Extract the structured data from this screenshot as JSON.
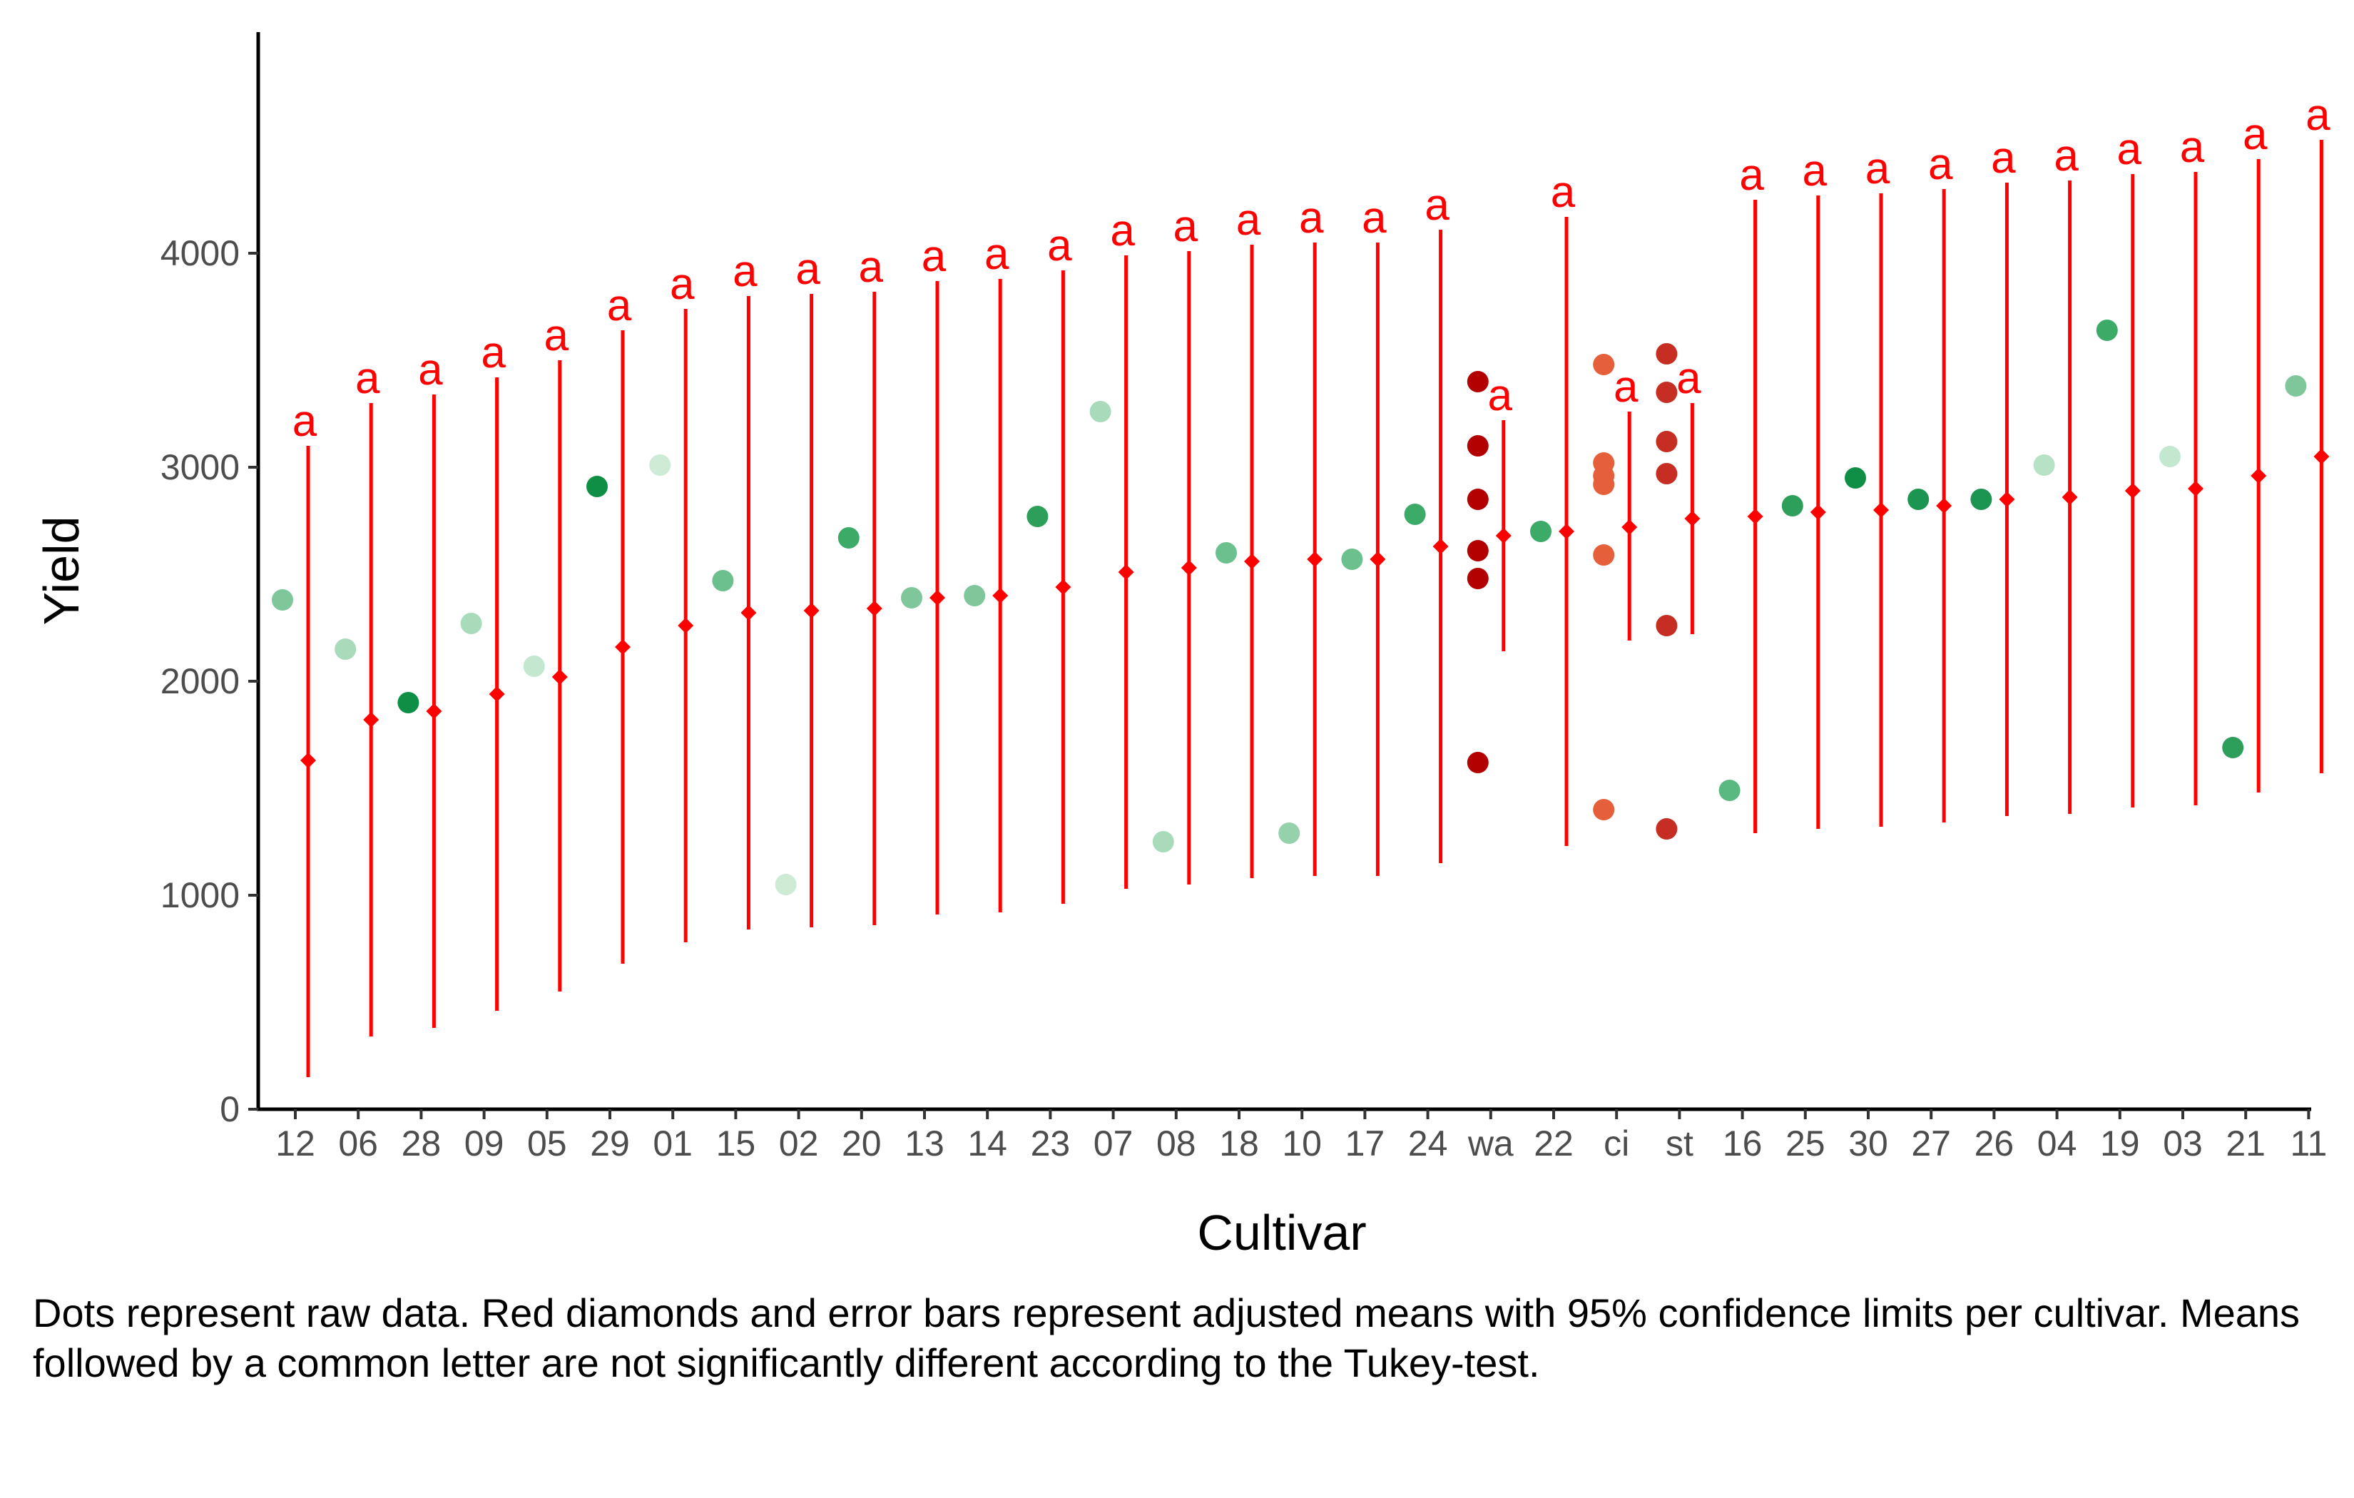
{
  "chart_data": {
    "type": "scatter",
    "xlabel": "Cultivar",
    "ylabel": "Yield",
    "ylim": [
      0,
      4900
    ],
    "yticks": [
      0,
      1000,
      2000,
      3000,
      4000
    ],
    "grid": false,
    "caption": "Dots represent raw data. Red diamonds and error bars represent adjusted means with 95% confidence limits per cultivar. Means followed by a common letter are not significantly different according to the Tukey-test.",
    "categories": [
      "12",
      "06",
      "28",
      "09",
      "05",
      "29",
      "01",
      "15",
      "02",
      "20",
      "13",
      "14",
      "23",
      "07",
      "08",
      "18",
      "10",
      "17",
      "24",
      "wa",
      "22",
      "ci",
      "st",
      "16",
      "25",
      "30",
      "27",
      "26",
      "04",
      "19",
      "03",
      "21",
      "11"
    ],
    "raw_data": [
      {
        "cultivar": "12",
        "values": [
          2380
        ],
        "color": "#7fc79b"
      },
      {
        "cultivar": "06",
        "values": [
          2150
        ],
        "color": "#a9dbbb"
      },
      {
        "cultivar": "28",
        "values": [
          1900
        ],
        "color": "#0f8f45"
      },
      {
        "cultivar": "09",
        "values": [
          2270
        ],
        "color": "#a9dbbb"
      },
      {
        "cultivar": "05",
        "values": [
          2070
        ],
        "color": "#c4e8cf"
      },
      {
        "cultivar": "29",
        "values": [
          2910
        ],
        "color": "#0f8f45"
      },
      {
        "cultivar": "01",
        "values": [
          3010
        ],
        "color": "#cdebd5"
      },
      {
        "cultivar": "15",
        "values": [
          2470
        ],
        "color": "#6cc08d"
      },
      {
        "cultivar": "02",
        "values": [
          1050
        ],
        "color": "#cdebd5"
      },
      {
        "cultivar": "20",
        "values": [
          2670
        ],
        "color": "#3dab68"
      },
      {
        "cultivar": "13",
        "values": [
          2390
        ],
        "color": "#7fc79b"
      },
      {
        "cultivar": "14",
        "values": [
          2400
        ],
        "color": "#7fc79b"
      },
      {
        "cultivar": "23",
        "values": [
          2770
        ],
        "color": "#2e9f5a"
      },
      {
        "cultivar": "07",
        "values": [
          3260
        ],
        "color": "#a9dbbb"
      },
      {
        "cultivar": "08",
        "values": [
          1250
        ],
        "color": "#a9dbbb"
      },
      {
        "cultivar": "18",
        "values": [
          2600
        ],
        "color": "#6cc08d"
      },
      {
        "cultivar": "10",
        "values": [
          1290
        ],
        "color": "#95d1aa"
      },
      {
        "cultivar": "17",
        "values": [
          2570
        ],
        "color": "#6cc08d"
      },
      {
        "cultivar": "24",
        "values": [
          2780
        ],
        "color": "#3dab68"
      },
      {
        "cultivar": "wa",
        "values": [
          3400,
          3100,
          2850,
          2610,
          2480,
          1620
        ],
        "color": "#b30000"
      },
      {
        "cultivar": "22",
        "values": [
          2700
        ],
        "color": "#3dab68"
      },
      {
        "cultivar": "ci",
        "values": [
          3480,
          3020,
          2960,
          2920,
          2590,
          1400
        ],
        "color": "#e5603a"
      },
      {
        "cultivar": "st",
        "values": [
          3530,
          3350,
          3120,
          2970,
          2260,
          1310
        ],
        "color": "#c62e24"
      },
      {
        "cultivar": "16",
        "values": [
          1490
        ],
        "color": "#5ab980"
      },
      {
        "cultivar": "25",
        "values": [
          2820
        ],
        "color": "#2e9f5a"
      },
      {
        "cultivar": "30",
        "values": [
          2950
        ],
        "color": "#0f8f45"
      },
      {
        "cultivar": "27",
        "values": [
          2850
        ],
        "color": "#1b9550"
      },
      {
        "cultivar": "26",
        "values": [
          2850
        ],
        "color": "#1b9550"
      },
      {
        "cultivar": "04",
        "values": [
          3010
        ],
        "color": "#b8e2c6"
      },
      {
        "cultivar": "19",
        "values": [
          3640
        ],
        "color": "#3dab68"
      },
      {
        "cultivar": "03",
        "values": [
          3050
        ],
        "color": "#c4e8cf"
      },
      {
        "cultivar": "21",
        "values": [
          1690
        ],
        "color": "#2e9f5a"
      },
      {
        "cultivar": "11",
        "values": [
          3380
        ],
        "color": "#7fc79b"
      }
    ],
    "means": [
      {
        "cultivar": "12",
        "mean": 1630,
        "lower": 150,
        "upper": 3100,
        "letter": "a"
      },
      {
        "cultivar": "06",
        "mean": 1820,
        "lower": 340,
        "upper": 3300,
        "letter": "a"
      },
      {
        "cultivar": "28",
        "mean": 1860,
        "lower": 380,
        "upper": 3340,
        "letter": "a"
      },
      {
        "cultivar": "09",
        "mean": 1940,
        "lower": 460,
        "upper": 3420,
        "letter": "a"
      },
      {
        "cultivar": "05",
        "mean": 2020,
        "lower": 550,
        "upper": 3500,
        "letter": "a"
      },
      {
        "cultivar": "29",
        "mean": 2160,
        "lower": 680,
        "upper": 3640,
        "letter": "a"
      },
      {
        "cultivar": "01",
        "mean": 2260,
        "lower": 780,
        "upper": 3740,
        "letter": "a"
      },
      {
        "cultivar": "15",
        "mean": 2320,
        "lower": 840,
        "upper": 3800,
        "letter": "a"
      },
      {
        "cultivar": "02",
        "mean": 2330,
        "lower": 850,
        "upper": 3810,
        "letter": "a"
      },
      {
        "cultivar": "20",
        "mean": 2340,
        "lower": 860,
        "upper": 3820,
        "letter": "a"
      },
      {
        "cultivar": "13",
        "mean": 2390,
        "lower": 910,
        "upper": 3870,
        "letter": "a"
      },
      {
        "cultivar": "14",
        "mean": 2400,
        "lower": 920,
        "upper": 3880,
        "letter": "a"
      },
      {
        "cultivar": "23",
        "mean": 2440,
        "lower": 960,
        "upper": 3920,
        "letter": "a"
      },
      {
        "cultivar": "07",
        "mean": 2510,
        "lower": 1030,
        "upper": 3990,
        "letter": "a"
      },
      {
        "cultivar": "08",
        "mean": 2530,
        "lower": 1050,
        "upper": 4010,
        "letter": "a"
      },
      {
        "cultivar": "18",
        "mean": 2560,
        "lower": 1080,
        "upper": 4040,
        "letter": "a"
      },
      {
        "cultivar": "10",
        "mean": 2570,
        "lower": 1090,
        "upper": 4050,
        "letter": "a"
      },
      {
        "cultivar": "17",
        "mean": 2570,
        "lower": 1090,
        "upper": 4050,
        "letter": "a"
      },
      {
        "cultivar": "24",
        "mean": 2630,
        "lower": 1150,
        "upper": 4110,
        "letter": "a"
      },
      {
        "cultivar": "wa",
        "mean": 2680,
        "lower": 2140,
        "upper": 3220,
        "letter": "a"
      },
      {
        "cultivar": "22",
        "mean": 2700,
        "lower": 1230,
        "upper": 4170,
        "letter": "a"
      },
      {
        "cultivar": "ci",
        "mean": 2720,
        "lower": 2190,
        "upper": 3260,
        "letter": "a"
      },
      {
        "cultivar": "st",
        "mean": 2760,
        "lower": 2220,
        "upper": 3300,
        "letter": "a"
      },
      {
        "cultivar": "16",
        "mean": 2770,
        "lower": 1290,
        "upper": 4250,
        "letter": "a"
      },
      {
        "cultivar": "25",
        "mean": 2790,
        "lower": 1310,
        "upper": 4270,
        "letter": "a"
      },
      {
        "cultivar": "30",
        "mean": 2800,
        "lower": 1320,
        "upper": 4280,
        "letter": "a"
      },
      {
        "cultivar": "27",
        "mean": 2820,
        "lower": 1340,
        "upper": 4300,
        "letter": "a"
      },
      {
        "cultivar": "26",
        "mean": 2850,
        "lower": 1370,
        "upper": 4330,
        "letter": "a"
      },
      {
        "cultivar": "04",
        "mean": 2860,
        "lower": 1380,
        "upper": 4340,
        "letter": "a"
      },
      {
        "cultivar": "19",
        "mean": 2890,
        "lower": 1410,
        "upper": 4370,
        "letter": "a"
      },
      {
        "cultivar": "03",
        "mean": 2900,
        "lower": 1420,
        "upper": 4380,
        "letter": "a"
      },
      {
        "cultivar": "21",
        "mean": 2960,
        "lower": 1480,
        "upper": 4440,
        "letter": "a"
      },
      {
        "cultivar": "11",
        "mean": 3050,
        "lower": 1570,
        "upper": 4530,
        "letter": "a"
      }
    ],
    "mean_color": "#ff0000"
  }
}
